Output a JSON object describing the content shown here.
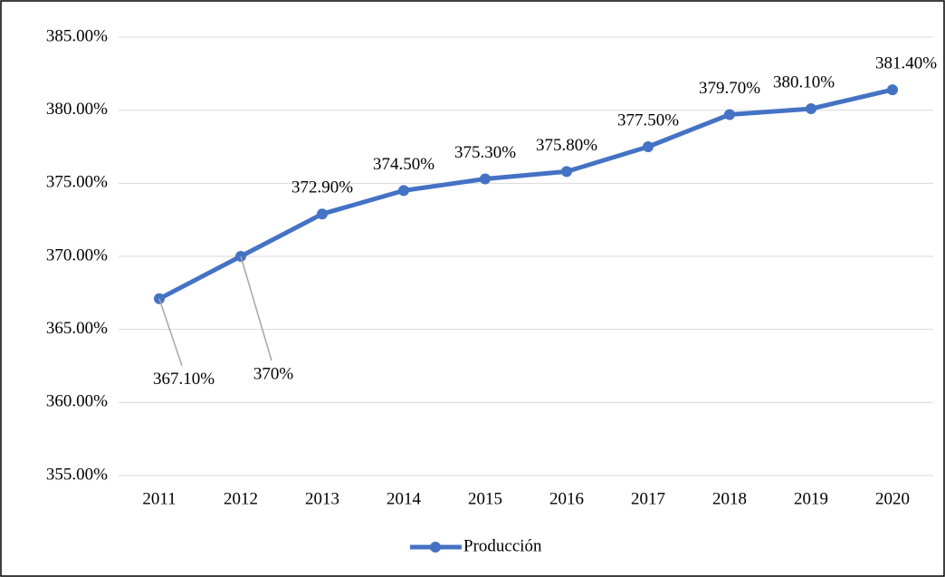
{
  "chart_data": {
    "type": "line",
    "categories": [
      "2011",
      "2012",
      "2013",
      "2014",
      "2015",
      "2016",
      "2017",
      "2018",
      "2019",
      "2020"
    ],
    "series": [
      {
        "name": "Producción",
        "color": "#4472c4",
        "values": [
          367.1,
          370,
          372.9,
          374.5,
          375.3,
          375.8,
          377.5,
          379.7,
          380.1,
          381.4
        ],
        "value_labels": [
          "367.10%",
          "370%",
          "372.90%",
          "374.50%",
          "375.30%",
          "375.80%",
          "377.50%",
          "379.70%",
          "380.10%",
          "381.40%"
        ]
      }
    ],
    "ylim": [
      355,
      385
    ],
    "yticks": [
      {
        "value": 355,
        "label": "355.00%"
      },
      {
        "value": 360,
        "label": "360.00%"
      },
      {
        "value": 365,
        "label": "365.00%"
      },
      {
        "value": 370,
        "label": "370.00%"
      },
      {
        "value": 375,
        "label": "375.00%"
      },
      {
        "value": 380,
        "label": "380.00%"
      },
      {
        "value": 385,
        "label": "385.00%"
      }
    ],
    "grid": true,
    "legend": "bottom"
  }
}
